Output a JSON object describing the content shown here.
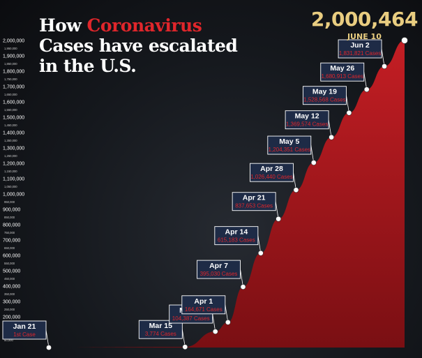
{
  "title": {
    "prefix": "How ",
    "accent": "Coronavirus",
    "line2": "Cases have escalated",
    "line3": "in the U.S."
  },
  "headline": {
    "value": "2,000,464",
    "date": "JUNE 10"
  },
  "colors": {
    "fill": "#c41e24",
    "fill_dark": "#7a0f13",
    "headline": "#e9cd80",
    "callout_bg": "#1e2b46",
    "callout_text": "#ffffff",
    "callout_cases": "#e0262b",
    "axis_text": "#ffffff"
  },
  "chart_data": {
    "type": "area",
    "title": "How Coronavirus Cases have escalated in the U.S.",
    "ylim": [
      0,
      2000000
    ],
    "y_major_ticks": [
      "100,000",
      "200,000",
      "300,000",
      "400,000",
      "500,000",
      "600,000",
      "700,000",
      "800,000",
      "900,000",
      "1,000,000",
      "1,100,000",
      "1,200,000",
      "1,300,000",
      "1,400,000",
      "1,500,000",
      "1,600,000",
      "1,700,000",
      "1,800,000",
      "1,900,000",
      "2,000,000"
    ],
    "y_minor_ticks": [
      "50,000",
      "150,000",
      "250,000",
      "350,000",
      "450,000",
      "550,000",
      "650,000",
      "750,000",
      "850,000",
      "950,000",
      "1,050,000",
      "1,150,000",
      "1,250,000",
      "1,350,000",
      "1,450,000",
      "1,550,000",
      "1,650,000",
      "1,750,000",
      "1,850,000",
      "1,950,000"
    ],
    "x": [
      "2020-01-21",
      "2020-03-15",
      "2020-03-27",
      "2020-04-01",
      "2020-04-07",
      "2020-04-14",
      "2020-04-21",
      "2020-04-28",
      "2020-05-05",
      "2020-05-12",
      "2020-05-19",
      "2020-05-26",
      "2020-06-02",
      "2020-06-10"
    ],
    "y": [
      1,
      3774,
      104387,
      164671,
      395030,
      615183,
      837653,
      1026440,
      1204351,
      1369574,
      1528568,
      1680913,
      1831821,
      2000464
    ],
    "annotations": [
      {
        "date": "Jan 21",
        "cases": "1st Case"
      },
      {
        "date": "Mar 15",
        "cases": "3,774 Cases"
      },
      {
        "date": "Mar 27",
        "cases": "104,387 Cases"
      },
      {
        "date": "Apr 1",
        "cases": "164,671 Cases"
      },
      {
        "date": "Apr 7",
        "cases": "395,030 Cases"
      },
      {
        "date": "Apr 14",
        "cases": "615,183 Cases"
      },
      {
        "date": "Apr 21",
        "cases": "837,653 Cases"
      },
      {
        "date": "Apr 28",
        "cases": "1,026,440 Cases"
      },
      {
        "date": "May 5",
        "cases": "1,204,351 Cases"
      },
      {
        "date": "May 12",
        "cases": "1,369,574 Cases"
      },
      {
        "date": "May 19",
        "cases": "1,528,568 Cases"
      },
      {
        "date": "May 26",
        "cases": "1,680,913 Cases"
      },
      {
        "date": "Jun 2",
        "cases": "1,831,821 Cases"
      }
    ],
    "grid": false,
    "legend": "none"
  }
}
